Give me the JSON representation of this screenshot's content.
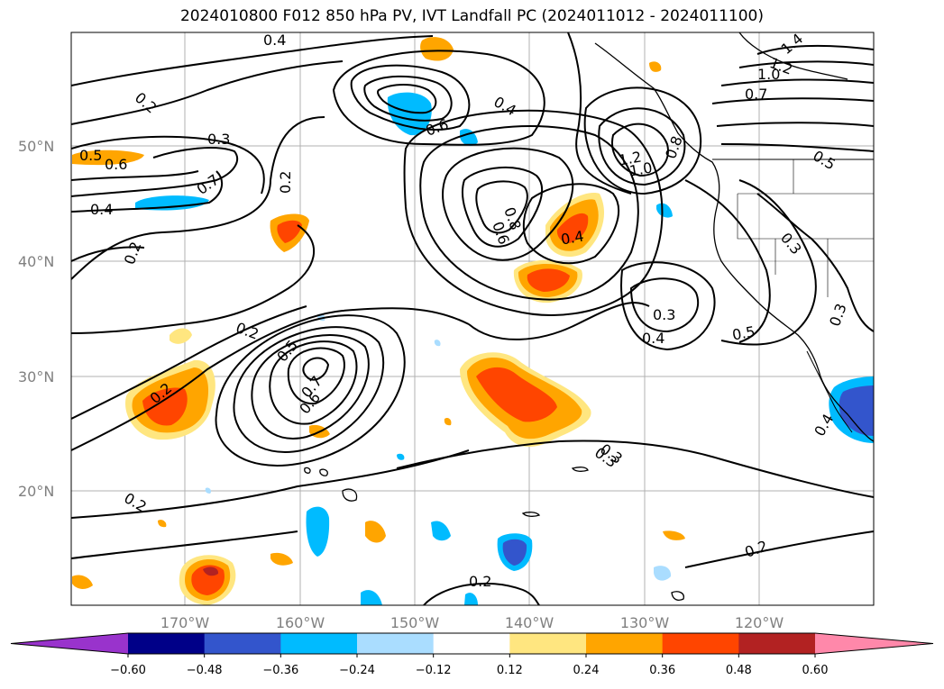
{
  "title": "2024010800 F012 850 hPa PV, IVT Landfall PC (2024011012 - 2024011100)",
  "lat_labels": [
    "50°N",
    "40°N",
    "30°N",
    "20°N"
  ],
  "lon_labels": [
    "170°W",
    "160°W",
    "150°W",
    "140°W",
    "130°W",
    "120°W"
  ],
  "colorbar": {
    "colors": [
      "#9933cc",
      "#000088",
      "#3355cc",
      "#00bbff",
      "#aaddff",
      "#ffffff",
      "#ffe680",
      "#ffa500",
      "#ff4500",
      "#b22222",
      "#ff88aa"
    ],
    "tick_labels": [
      "−0.60",
      "−0.48",
      "−0.36",
      "−0.24",
      "−0.12",
      "0.12",
      "0.24",
      "0.36",
      "0.48",
      "0.60"
    ]
  },
  "contour_labels": [
    "0.4",
    "0.2",
    "0.3",
    "0.5",
    "0.6",
    "0.4",
    "0.7",
    "0.2",
    "0.2",
    "0.2",
    "0.5",
    "0.7",
    "0.6",
    "0.6",
    "0.4",
    "0.8",
    "0.6",
    "0.4",
    "0.3",
    "0.4",
    "0.5",
    "0.3",
    "0.3",
    "1.2",
    "1.0",
    "1.4",
    "1.2",
    "1.0",
    "0.7",
    "0.8",
    "0.5",
    "0.3",
    "0.4",
    "0.2",
    "0.2",
    "0.3",
    "0.2",
    "0.2"
  ],
  "colors": {
    "grid": "#b0b0b0",
    "contour": "#000000",
    "axis_label": "#808080"
  }
}
